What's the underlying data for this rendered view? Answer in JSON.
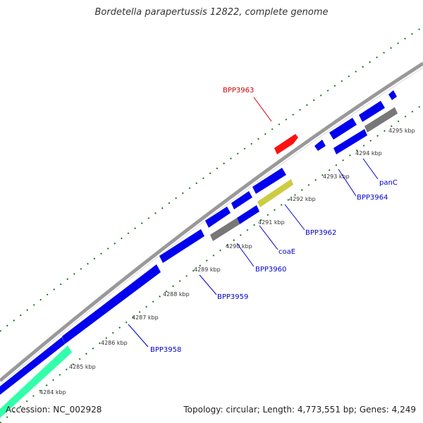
{
  "title": "Bordetella parapertussis 12822, complete genome",
  "footer": {
    "accession": "Accession: NC_002928",
    "summary": "Topology: circular; Length: 4,773,551 bp; Genes: 4,249"
  },
  "colors": {
    "backbone": "#888888",
    "cds": "#0000ee",
    "pseudo": "#777777",
    "highlight": "#ff1111",
    "rna": "#33ffaa",
    "tick": "#1a7a1a",
    "label_link": "#0000cc"
  },
  "kbp_ticks": [
    {
      "label": "4284 kbp"
    },
    {
      "label": "4285 kbp"
    },
    {
      "label": "4286 kbp"
    },
    {
      "label": "4287 kbp"
    },
    {
      "label": "4288 kbp"
    },
    {
      "label": "4289 kbp"
    },
    {
      "label": "4290 kbp"
    },
    {
      "label": "4291 kbp"
    },
    {
      "label": "4292 kbp"
    },
    {
      "label": "4293 kbp"
    },
    {
      "label": "4294 kbp"
    },
    {
      "label": "4295 kbp"
    }
  ],
  "gene_labels": [
    {
      "name": "BPP3963",
      "color": "#cc0000"
    },
    {
      "name": "panC",
      "color": "#0000cc"
    },
    {
      "name": "BPP3964",
      "color": "#0000cc"
    },
    {
      "name": "BPP3962",
      "color": "#0000cc"
    },
    {
      "name": "coaE",
      "color": "#0000cc"
    },
    {
      "name": "BPP3960",
      "color": "#0000cc"
    },
    {
      "name": "BPP3959",
      "color": "#0000cc"
    },
    {
      "name": "BPP3958",
      "color": "#0000cc"
    }
  ]
}
